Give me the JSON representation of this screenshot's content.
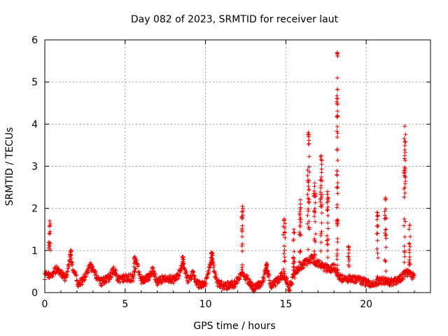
{
  "chart_data": {
    "type": "scatter",
    "title": "Day 082 of 2023, SRMTID for receiver laut",
    "xlabel": "GPS time / hours",
    "ylabel": "SRMTID / TECUs",
    "xlim": [
      0,
      24
    ],
    "ylim": [
      0,
      6
    ],
    "xticks": [
      0,
      5,
      10,
      15,
      20
    ],
    "xtick_labels": [
      "0",
      "5",
      "10",
      "15",
      "20"
    ],
    "yticks": [
      0,
      1,
      2,
      3,
      4,
      5,
      6
    ],
    "ytick_labels": [
      "0",
      "1",
      "2",
      "3",
      "4",
      "5",
      "6"
    ],
    "grid": true,
    "marker": "+",
    "color": "#ee0000",
    "baseline_profile": [
      [
        0.0,
        0.4
      ],
      [
        0.5,
        0.45
      ],
      [
        0.7,
        0.55
      ],
      [
        1.0,
        0.45
      ],
      [
        1.3,
        0.35
      ],
      [
        1.6,
        0.85
      ],
      [
        1.9,
        0.4
      ],
      [
        2.1,
        0.2
      ],
      [
        2.4,
        0.3
      ],
      [
        2.8,
        0.65
      ],
      [
        3.2,
        0.4
      ],
      [
        3.5,
        0.25
      ],
      [
        4.0,
        0.35
      ],
      [
        4.3,
        0.55
      ],
      [
        4.6,
        0.3
      ],
      [
        5.0,
        0.35
      ],
      [
        5.5,
        0.35
      ],
      [
        5.7,
        0.75
      ],
      [
        6.0,
        0.3
      ],
      [
        6.5,
        0.35
      ],
      [
        6.7,
        0.55
      ],
      [
        7.0,
        0.25
      ],
      [
        7.5,
        0.35
      ],
      [
        8.0,
        0.3
      ],
      [
        8.3,
        0.4
      ],
      [
        8.6,
        0.7
      ],
      [
        8.9,
        0.3
      ],
      [
        9.2,
        0.45
      ],
      [
        9.5,
        0.2
      ],
      [
        10.0,
        0.2
      ],
      [
        10.4,
        0.8
      ],
      [
        10.7,
        0.25
      ],
      [
        11.2,
        0.15
      ],
      [
        11.8,
        0.2
      ],
      [
        12.3,
        0.5
      ],
      [
        12.6,
        0.3
      ],
      [
        13.0,
        0.1
      ],
      [
        13.5,
        0.2
      ],
      [
        13.8,
        0.6
      ],
      [
        14.1,
        0.15
      ],
      [
        14.5,
        0.3
      ],
      [
        14.9,
        0.45
      ],
      [
        15.2,
        0.1
      ],
      [
        15.5,
        0.4
      ],
      [
        15.8,
        0.6
      ],
      [
        16.2,
        0.7
      ],
      [
        16.6,
        0.8
      ],
      [
        17.0,
        0.7
      ],
      [
        17.4,
        0.6
      ],
      [
        17.7,
        0.55
      ],
      [
        18.0,
        0.6
      ],
      [
        18.3,
        0.4
      ],
      [
        18.6,
        0.3
      ],
      [
        19.0,
        0.35
      ],
      [
        19.5,
        0.3
      ],
      [
        20.0,
        0.25
      ],
      [
        20.5,
        0.2
      ],
      [
        21.0,
        0.3
      ],
      [
        21.3,
        0.25
      ],
      [
        21.7,
        0.25
      ],
      [
        22.2,
        0.35
      ],
      [
        22.5,
        0.5
      ],
      [
        22.8,
        0.4
      ],
      [
        23.0,
        0.4
      ]
    ],
    "spikes": [
      {
        "x": 0.3,
        "peak": 1.7,
        "width": 0.15
      },
      {
        "x": 1.6,
        "peak": 1.0,
        "width": 0.12
      },
      {
        "x": 5.6,
        "peak": 0.85,
        "width": 0.1
      },
      {
        "x": 8.6,
        "peak": 0.85,
        "width": 0.1
      },
      {
        "x": 10.4,
        "peak": 0.95,
        "width": 0.1
      },
      {
        "x": 12.3,
        "peak": 2.05,
        "width": 0.08
      },
      {
        "x": 13.8,
        "peak": 0.7,
        "width": 0.1
      },
      {
        "x": 14.9,
        "peak": 1.75,
        "width": 0.12
      },
      {
        "x": 15.5,
        "peak": 1.5,
        "width": 0.08
      },
      {
        "x": 15.9,
        "peak": 2.2,
        "width": 0.12
      },
      {
        "x": 16.4,
        "peak": 3.8,
        "width": 0.12
      },
      {
        "x": 16.8,
        "peak": 2.6,
        "width": 0.12
      },
      {
        "x": 17.2,
        "peak": 3.25,
        "width": 0.1
      },
      {
        "x": 17.6,
        "peak": 2.4,
        "width": 0.1
      },
      {
        "x": 18.2,
        "peak": 5.7,
        "width": 0.06
      },
      {
        "x": 18.9,
        "peak": 1.1,
        "width": 0.08
      },
      {
        "x": 20.7,
        "peak": 1.9,
        "width": 0.08
      },
      {
        "x": 21.2,
        "peak": 2.25,
        "width": 0.1
      },
      {
        "x": 22.4,
        "peak": 3.95,
        "width": 0.1
      },
      {
        "x": 22.7,
        "peak": 1.6,
        "width": 0.08
      }
    ]
  }
}
